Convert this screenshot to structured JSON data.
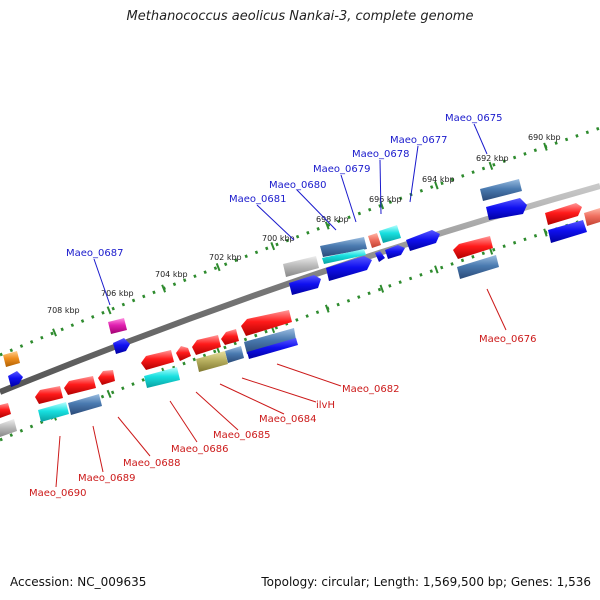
{
  "title": "Methanococcus aeolicus Nankai-3, complete genome",
  "footer": {
    "accession": "Accession: NC_009635",
    "info": "Topology: circular; Length: 1,569,500 bp; Genes: 1,536"
  },
  "scale_labels": [
    "690 kbp",
    "692 kbp",
    "694 kbp",
    "696 kbp",
    "698 kbp",
    "700 kbp",
    "702 kbp",
    "704 kbp",
    "706 kbp",
    "708 kbp"
  ],
  "forward_gene_labels": [
    "Maeo_0675",
    "Maeo_0677",
    "Maeo_0678",
    "Maeo_0679",
    "Maeo_0680",
    "Maeo_0681",
    "Maeo_0687"
  ],
  "reverse_gene_labels": [
    "Maeo_0676",
    "Maeo_0682",
    "ilvH",
    "Maeo_0684",
    "Maeo_0685",
    "Maeo_0686",
    "Maeo_0688",
    "Maeo_0689",
    "Maeo_0690"
  ],
  "colors": {
    "backbone": "#8a8a8a",
    "scale_dots": "#2e8b2e",
    "forward_label": "#1a1acc",
    "reverse_label": "#cc1a1a",
    "gene_red": "#e8141e",
    "gene_blue": "#1414e0",
    "gene_steelblue": "#4a7ab0",
    "gene_cyan": "#18d8d8",
    "gene_magenta": "#e020a0",
    "gene_orange": "#f09020",
    "gene_olive": "#b8b060",
    "gene_gray": "#b8b8b8",
    "gene_salmon": "#f07060"
  }
}
